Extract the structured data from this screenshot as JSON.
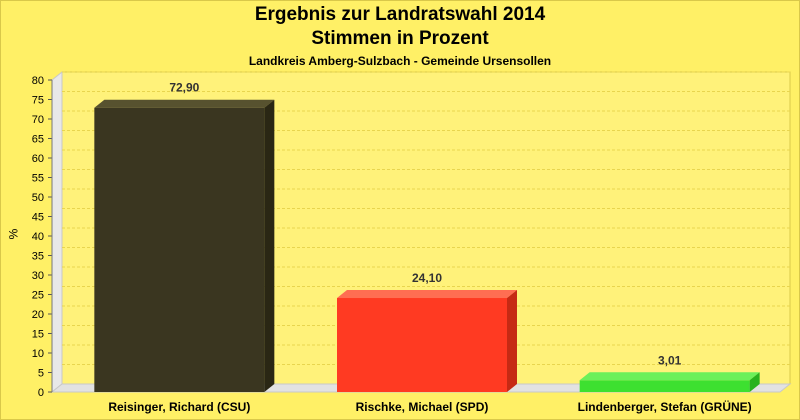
{
  "title": "Ergebnis zur Landratswahl 2014",
  "subtitle": "Stimmen in Prozent",
  "caption": "Landkreis Amberg-Sulzbach - Gemeinde Ursensollen",
  "colors": {
    "background": "#fff066",
    "csu": "#3a3620",
    "spd": "#ff3a22",
    "gruene": "#3de030"
  },
  "chart_data": {
    "type": "bar",
    "title": "Ergebnis zur Landratswahl 2014",
    "subtitle": "Stimmen in Prozent",
    "xlabel": "",
    "ylabel": "%",
    "ylim": [
      0,
      80
    ],
    "yticks": [
      0,
      5,
      10,
      15,
      20,
      25,
      30,
      35,
      40,
      45,
      50,
      55,
      60,
      65,
      70,
      75,
      80
    ],
    "categories": [
      "Reisinger, Richard (CSU)",
      "Rischke, Michael (SPD)",
      "Lindenberger, Stefan (GRÜNE)"
    ],
    "values": [
      72.9,
      24.1,
      3.01
    ],
    "value_labels": [
      "72,90",
      "24,10",
      "3,01"
    ],
    "grid": true,
    "legend": "none"
  }
}
